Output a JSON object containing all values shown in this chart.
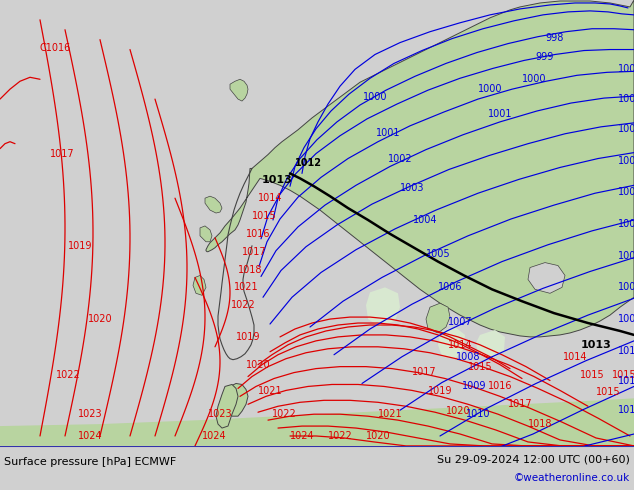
{
  "title_left": "Surface pressure [hPa] ECMWF",
  "title_right": "Su 29-09-2024 12:00 UTC (00+60)",
  "credit": "©weatheronline.co.uk",
  "bg_color": "#d0d0d0",
  "land_color": "#b8d4a0",
  "highland_color": "#d8e8d0",
  "isobar_blue_color": "#0000dd",
  "isobar_red_color": "#dd0000",
  "isobar_black_color": "#000000",
  "coast_color": "#444444",
  "label_fontsize": 7,
  "footer_fontsize": 8,
  "credit_fontsize": 7.5,
  "credit_color": "#0000cc",
  "footer_bg": "#ffffff"
}
